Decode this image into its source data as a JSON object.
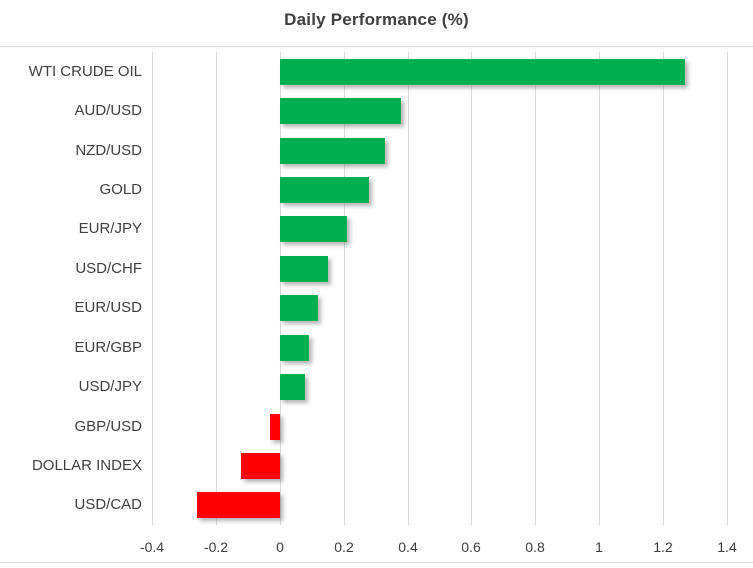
{
  "chart_data": {
    "type": "bar",
    "orientation": "horizontal",
    "title": "Daily Performance (%)",
    "categories": [
      "WTI CRUDE OIL",
      "AUD/USD",
      "NZD/USD",
      "GOLD",
      "EUR/JPY",
      "USD/CHF",
      "EUR/USD",
      "EUR/GBP",
      "USD/JPY",
      "GBP/USD",
      "DOLLAR INDEX",
      "USD/CAD"
    ],
    "values": [
      1.27,
      0.38,
      0.33,
      0.28,
      0.21,
      0.15,
      0.12,
      0.09,
      0.08,
      -0.03,
      -0.12,
      -0.26
    ],
    "xlabel": "",
    "ylabel": "",
    "xlim": [
      -0.4,
      1.4
    ],
    "x_tick_labels": [
      "-0.4",
      "-0.2",
      "0",
      "0.2",
      "0.4",
      "0.6",
      "0.8",
      "1",
      "1.2",
      "1.4"
    ],
    "x_tick_values": [
      -0.4,
      -0.2,
      0,
      0.2,
      0.4,
      0.6,
      0.8,
      1,
      1.2,
      1.4
    ],
    "grid": "vertical",
    "legend_position": "none",
    "positive_color": "#00B050",
    "negative_color": "#FF0000",
    "gridline_color": "#D9D9D9",
    "border_color": "#D9D9D9",
    "text_color": "#404040"
  }
}
